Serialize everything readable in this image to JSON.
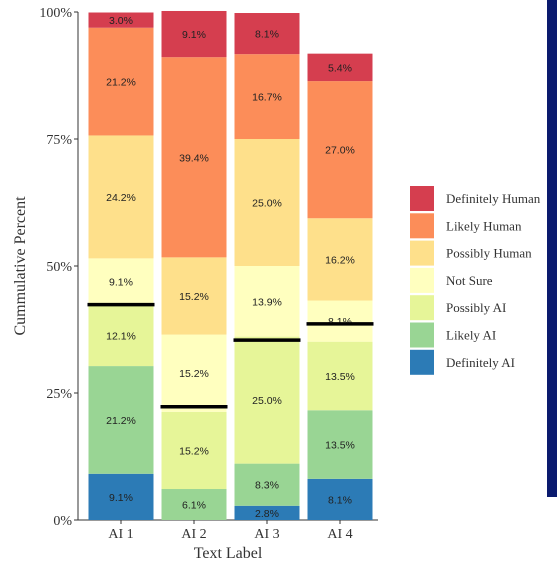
{
  "chart_data": {
    "type": "bar",
    "stacked": true,
    "xlabel": "Text Label",
    "ylabel": "Cummulative Percent",
    "ylim": [
      0,
      100
    ],
    "yticks": [
      "0%",
      "25%",
      "50%",
      "75%",
      "100%"
    ],
    "categories": [
      "AI 1",
      "AI 2",
      "AI 3",
      "AI 4"
    ],
    "series": [
      {
        "name": "Definitely AI",
        "color": "#2c7bb6",
        "values": [
          9.1,
          0,
          2.8,
          8.1
        ],
        "labels": [
          "9.1%",
          "",
          "2.8%",
          "8.1%"
        ]
      },
      {
        "name": "Likely AI",
        "color": "#99d594",
        "values": [
          21.2,
          6.1,
          8.3,
          13.5
        ],
        "labels": [
          "21.2%",
          "6.1%",
          "8.3%",
          "13.5%"
        ]
      },
      {
        "name": "Possibly AI",
        "color": "#e6f598",
        "values": [
          12.1,
          15.2,
          25.0,
          13.5
        ],
        "labels": [
          "12.1%",
          "15.2%",
          "25.0%",
          "13.5%"
        ]
      },
      {
        "name": "Not Sure",
        "color": "#ffffbf",
        "values": [
          9.1,
          15.2,
          13.9,
          8.1
        ],
        "labels": [
          "9.1%",
          "15.2%",
          "13.9%",
          "8.1%"
        ]
      },
      {
        "name": "Possibly Human",
        "color": "#fee08b",
        "values": [
          24.2,
          15.2,
          25.0,
          16.2
        ],
        "labels": [
          "24.2%",
          "15.2%",
          "25.0%",
          "16.2%"
        ]
      },
      {
        "name": "Likely Human",
        "color": "#fc8d59",
        "values": [
          21.2,
          39.4,
          16.7,
          27.0
        ],
        "labels": [
          "21.2%",
          "39.4%",
          "16.7%",
          "27.0%"
        ]
      },
      {
        "name": "Definitely Human",
        "color": "#d53e4f",
        "values": [
          3.0,
          9.1,
          8.1,
          5.4
        ],
        "labels": [
          "3.0%",
          "9.1%",
          "8.1%",
          "5.4%"
        ]
      }
    ],
    "reference_lines": [
      42.4,
      22.3,
      35.4,
      38.6
    ],
    "legend_order": [
      "Definitely Human",
      "Likely Human",
      "Possibly Human",
      "Not Sure",
      "Possibly AI",
      "Likely AI",
      "Definitely AI"
    ],
    "legend_position": "right",
    "grid": false
  }
}
